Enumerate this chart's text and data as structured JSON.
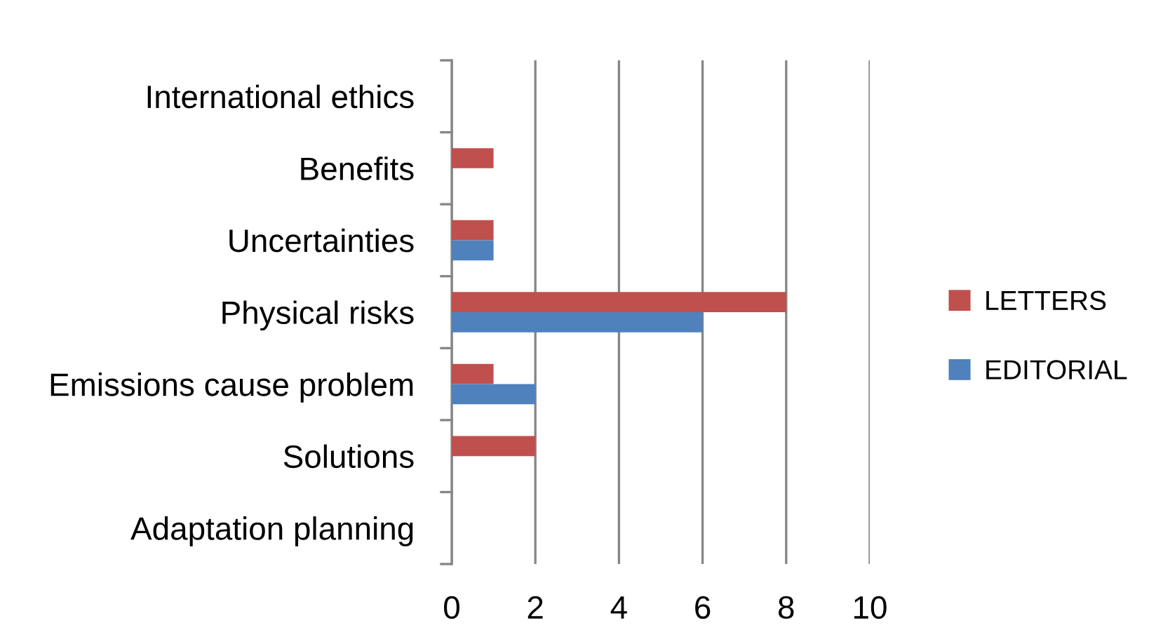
{
  "chart_data": {
    "type": "bar",
    "orientation": "horizontal",
    "categories": [
      "International ethics",
      "Benefits",
      "Uncertainties",
      "Physical risks",
      "Emissions cause problem",
      "Solutions",
      "Adaptation planning"
    ],
    "series": [
      {
        "name": "LETTERS",
        "color": "#c0504d",
        "values": [
          0,
          1,
          1,
          8,
          1,
          2,
          0
        ]
      },
      {
        "name": "EDITORIAL",
        "color": "#4f81bd",
        "values": [
          0,
          0,
          1,
          6,
          2,
          0,
          0
        ]
      }
    ],
    "xlim": [
      0,
      10
    ],
    "xticks": [
      0,
      2,
      4,
      6,
      8,
      10
    ],
    "grid": "x",
    "legend": "right"
  }
}
